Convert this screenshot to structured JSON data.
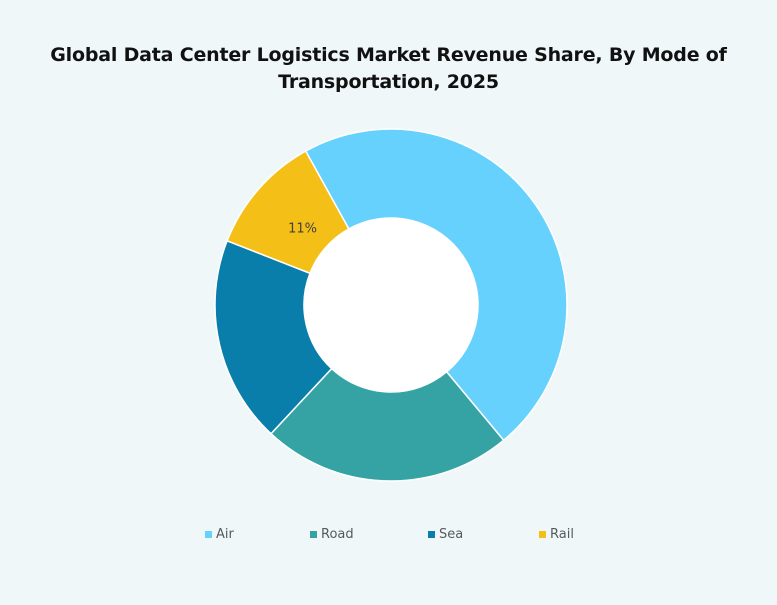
{
  "chart_data": {
    "type": "pie",
    "variant": "donut",
    "title": "Global Data Center Logistics Market Revenue Share, By Mode of Transportation, 2025",
    "categories": [
      "Air",
      "Road",
      "Sea",
      "Rail"
    ],
    "values": [
      47,
      23,
      19,
      11
    ],
    "data_labels": [
      "",
      "",
      "",
      "11%"
    ],
    "colors": [
      "#66d1fc",
      "#35a3a3",
      "#0a7eaa",
      "#f4c017"
    ],
    "legend": "bottom",
    "grid": false
  },
  "legend": {
    "items": [
      {
        "label": "Air",
        "color": "#66d1fc"
      },
      {
        "label": "Road",
        "color": "#35a3a3"
      },
      {
        "label": "Sea",
        "color": "#0a7eaa"
      },
      {
        "label": "Rail",
        "color": "#f4c017"
      }
    ]
  }
}
